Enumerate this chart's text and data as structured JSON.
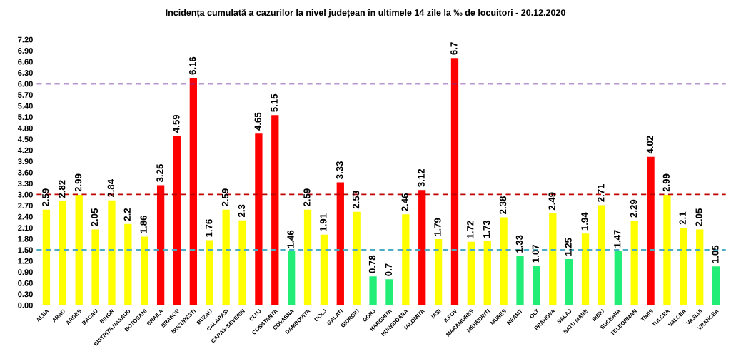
{
  "chart_data": {
    "type": "bar",
    "title": "Incidența cumulată a cazurilor la nivel județean în ultimele 14 zile la ‰ de locuitori - 20.12.2020",
    "categories": [
      "ALBA",
      "ARAD",
      "ARGES",
      "BACAU",
      "BIHOR",
      "BISTRITA NASAUD",
      "BOTOSANI",
      "BRAILA",
      "BRASOV",
      "BUCURESTI",
      "BUZAU",
      "CALARASI",
      "CARAS-SEVERIN",
      "CLUJ",
      "CONSTANTA",
      "COVASNA",
      "DAMBOVITA",
      "DOLJ",
      "GALATI",
      "GIURGIU",
      "GORJ",
      "HARGHITA",
      "HUNEDOARA",
      "IALOMITA",
      "IASI",
      "ILFOV",
      "MARAMURES",
      "MEHEDINTI",
      "MURES",
      "NEAMT",
      "OLT",
      "PRAHOVA",
      "SALAJ",
      "SATU MARE",
      "SIBIU",
      "SUCEAVA",
      "TELEORMAN",
      "TIMIS",
      "TULCEA",
      "VALCEA",
      "VASLUI",
      "VRANCEA"
    ],
    "values": [
      2.59,
      2.82,
      2.99,
      2.05,
      2.84,
      2.2,
      1.86,
      3.25,
      4.59,
      6.16,
      1.76,
      2.59,
      2.3,
      4.65,
      5.15,
      1.46,
      2.59,
      1.91,
      3.33,
      2.53,
      0.78,
      0.7,
      2.46,
      3.12,
      1.79,
      6.7,
      1.72,
      1.73,
      2.38,
      1.33,
      1.07,
      2.49,
      1.25,
      1.94,
      2.71,
      1.47,
      2.29,
      4.02,
      2.99,
      2.1,
      2.05,
      1.05
    ],
    "colors": [
      "#ffff00",
      "#ffff00",
      "#ffff00",
      "#ffff00",
      "#ffff00",
      "#ffff00",
      "#ffff00",
      "#ff0000",
      "#ff0000",
      "#ff0000",
      "#ffff00",
      "#ffff00",
      "#ffff00",
      "#ff0000",
      "#ff0000",
      "#22ee77",
      "#ffff00",
      "#ffff00",
      "#ff0000",
      "#ffff00",
      "#22ee77",
      "#22ee77",
      "#ffff00",
      "#ff0000",
      "#ffff00",
      "#ff0000",
      "#ffff00",
      "#ffff00",
      "#ffff00",
      "#22ee77",
      "#22ee77",
      "#ffff00",
      "#22ee77",
      "#ffff00",
      "#ffff00",
      "#22ee77",
      "#ffff00",
      "#ff0000",
      "#ffff00",
      "#ffff00",
      "#ffff00",
      "#22ee77"
    ],
    "ylim": [
      0,
      7.2
    ],
    "yticks": [
      {
        "value": 0,
        "label": "0.00"
      },
      {
        "value": 0.3,
        "label": "0.30"
      },
      {
        "value": 0.6,
        "label": "0.60"
      },
      {
        "value": 0.9,
        "label": "0.90"
      },
      {
        "value": 1.2,
        "label": "1.20"
      },
      {
        "value": 1.5,
        "label": "1.50"
      },
      {
        "value": 1.8,
        "label": "1.80"
      },
      {
        "value": 2.1,
        "label": "2.10"
      },
      {
        "value": 2.4,
        "label": "2.40"
      },
      {
        "value": 2.7,
        "label": "2.70"
      },
      {
        "value": 3.0,
        "label": "3.00"
      },
      {
        "value": 3.3,
        "label": "3.30"
      },
      {
        "value": 3.6,
        "label": "3.60"
      },
      {
        "value": 3.9,
        "label": "3.90"
      },
      {
        "value": 4.2,
        "label": "4.20"
      },
      {
        "value": 4.5,
        "label": "4.50"
      },
      {
        "value": 4.8,
        "label": "4.80"
      },
      {
        "value": 5.1,
        "label": "5.10"
      },
      {
        "value": 5.4,
        "label": "5.40"
      },
      {
        "value": 5.7,
        "label": "5.70"
      },
      {
        "value": 6.0,
        "label": "6.00"
      },
      {
        "value": 6.3,
        "label": "6.30"
      },
      {
        "value": 6.6,
        "label": "6.60"
      },
      {
        "value": 6.9,
        "label": "6.90"
      },
      {
        "value": 7.2,
        "label": "7.20"
      }
    ],
    "ref_lines": [
      {
        "axis": "y",
        "value": 1.5,
        "color": "#4bacc6",
        "line_style": "dashed"
      },
      {
        "axis": "y",
        "value": 3,
        "color": "#c00000",
        "line_style": "dashed"
      },
      {
        "axis": "y",
        "value": 6,
        "color": "#7030a0",
        "line_style": "dashed"
      }
    ],
    "data_labels": true,
    "grid": false,
    "legend": false
  }
}
